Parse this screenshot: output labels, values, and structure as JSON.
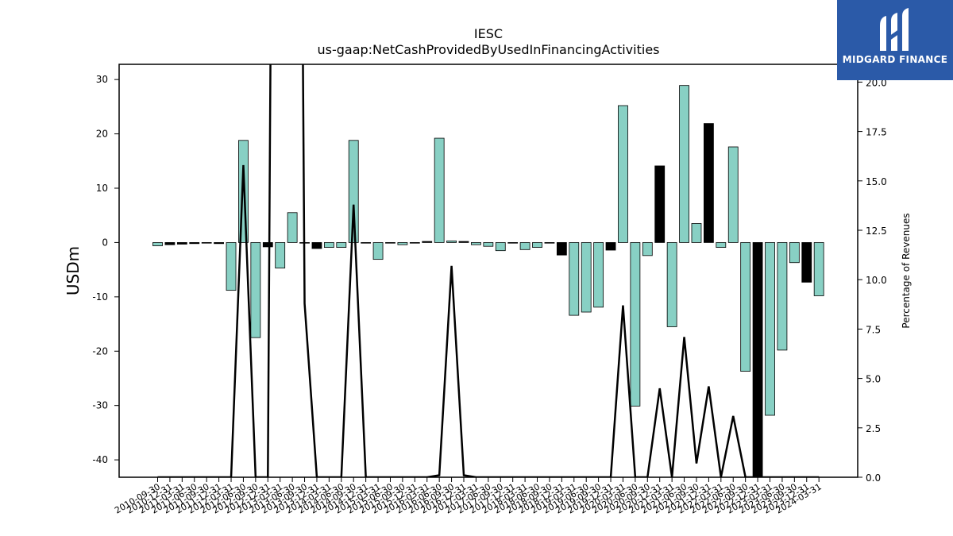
{
  "chart_data": {
    "type": "bar",
    "title": "IESC",
    "subtitle": "us-gaap:NetCashProvidedByUsedInFinancingActivities",
    "ylabel": "USDm",
    "ylabel_right": "Percentage of Revenues",
    "ylim": [
      -43.2,
      32.8
    ],
    "ylim_right": [
      0,
      20.9
    ],
    "yticks": [
      -40,
      -30,
      -20,
      -10,
      0,
      10,
      20,
      30
    ],
    "yticks_right": [
      0.0,
      2.5,
      5.0,
      7.5,
      10.0,
      12.5,
      15.0,
      17.5,
      20.0
    ],
    "tick_labels": [
      "2010-09-30",
      "2010-12-31",
      "2011-03-31",
      "2011-06-30",
      "2011-09-30",
      "2011-12-31",
      "2012-03-31",
      "2012-06-30",
      "2012-09-30",
      "2012-12-31",
      "2013-03-31",
      "2013-06-30",
      "2013-09-30",
      "2013-12-31",
      "2014-03-31",
      "2014-06-30",
      "2014-09-30",
      "2014-12-31",
      "2015-03-31",
      "2015-06-30",
      "2015-09-30",
      "2015-12-31",
      "2016-03-31",
      "2016-06-30",
      "2016-09-30",
      "2016-12-31",
      "2017-03-31",
      "2017-06-30",
      "2017-09-30",
      "2017-12-31",
      "2018-03-31",
      "2018-06-30",
      "2018-09-30",
      "2018-12-31",
      "2019-03-31",
      "2019-06-30",
      "2019-09-30",
      "2019-12-31",
      "2020-03-31",
      "2020-06-30",
      "2020-09-30",
      "2020-12-31",
      "2021-03-31",
      "2021-06-30",
      "2021-09-30",
      "2021-12-31",
      "2022-03-31",
      "2022-06-30",
      "2022-09-30",
      "2022-12-31",
      "2023-03-31",
      "2023-06-30",
      "2023-09-30",
      "2023-12-31",
      "2024-03-31"
    ],
    "series": [
      {
        "values": [
          -0.6,
          -0.4,
          -0.3,
          -0.2,
          -0.1,
          -0.2,
          -8.8,
          18.8,
          -17.5,
          -0.8,
          -4.7,
          5.5,
          -0.1,
          -1.1,
          -0.9,
          -0.9,
          18.8,
          -0.1,
          -3.1,
          -0.1,
          -0.4,
          -0.1,
          0.2,
          19.2,
          0.3,
          0.2,
          -0.4,
          -0.7,
          -1.5,
          -0.1,
          -1.3,
          -0.9,
          -0.1,
          -2.3,
          -13.4,
          -12.8,
          -11.9,
          -1.4,
          25.2,
          -30.1,
          -2.4,
          14.1,
          -15.5,
          28.9,
          3.5,
          21.9,
          -0.9,
          17.6,
          -23.7,
          -43.0,
          -31.8,
          -19.8,
          -3.7,
          -7.3,
          -9.8
        ],
        "colors": [
          "t",
          "k",
          "k",
          "k",
          "k",
          "k",
          "t",
          "t",
          "t",
          "k",
          "t",
          "t",
          "k",
          "k",
          "t",
          "t",
          "t",
          "k",
          "t",
          "k",
          "t",
          "k",
          "k",
          "t",
          "t",
          "k",
          "t",
          "t",
          "t",
          "k",
          "t",
          "t",
          "k",
          "k",
          "t",
          "t",
          "t",
          "k",
          "t",
          "t",
          "t",
          "k",
          "t",
          "t",
          "t",
          "k",
          "t",
          "t",
          "t",
          "k",
          "t",
          "t",
          "t",
          "k",
          "t"
        ]
      },
      {
        "type": "line",
        "values": [
          0,
          0,
          0,
          0,
          0,
          0,
          0,
          15.8,
          0,
          0,
          99,
          99,
          8.8,
          0,
          0,
          0,
          13.8,
          0,
          0,
          0,
          0,
          0,
          0,
          0.1,
          10.7,
          0.1,
          0,
          0,
          0,
          0,
          0,
          0,
          0,
          0,
          0,
          0,
          0,
          0,
          8.7,
          0,
          0,
          4.5,
          0,
          7.1,
          0.7,
          4.6,
          0,
          3.1,
          0,
          0,
          0,
          0,
          0,
          0,
          0
        ]
      }
    ],
    "colors": {
      "teal": "#88d0c4",
      "black": "#000000"
    }
  },
  "logo": {
    "name": "MIDGARD FINANCE",
    "icon": "midgard-logo-icon"
  }
}
